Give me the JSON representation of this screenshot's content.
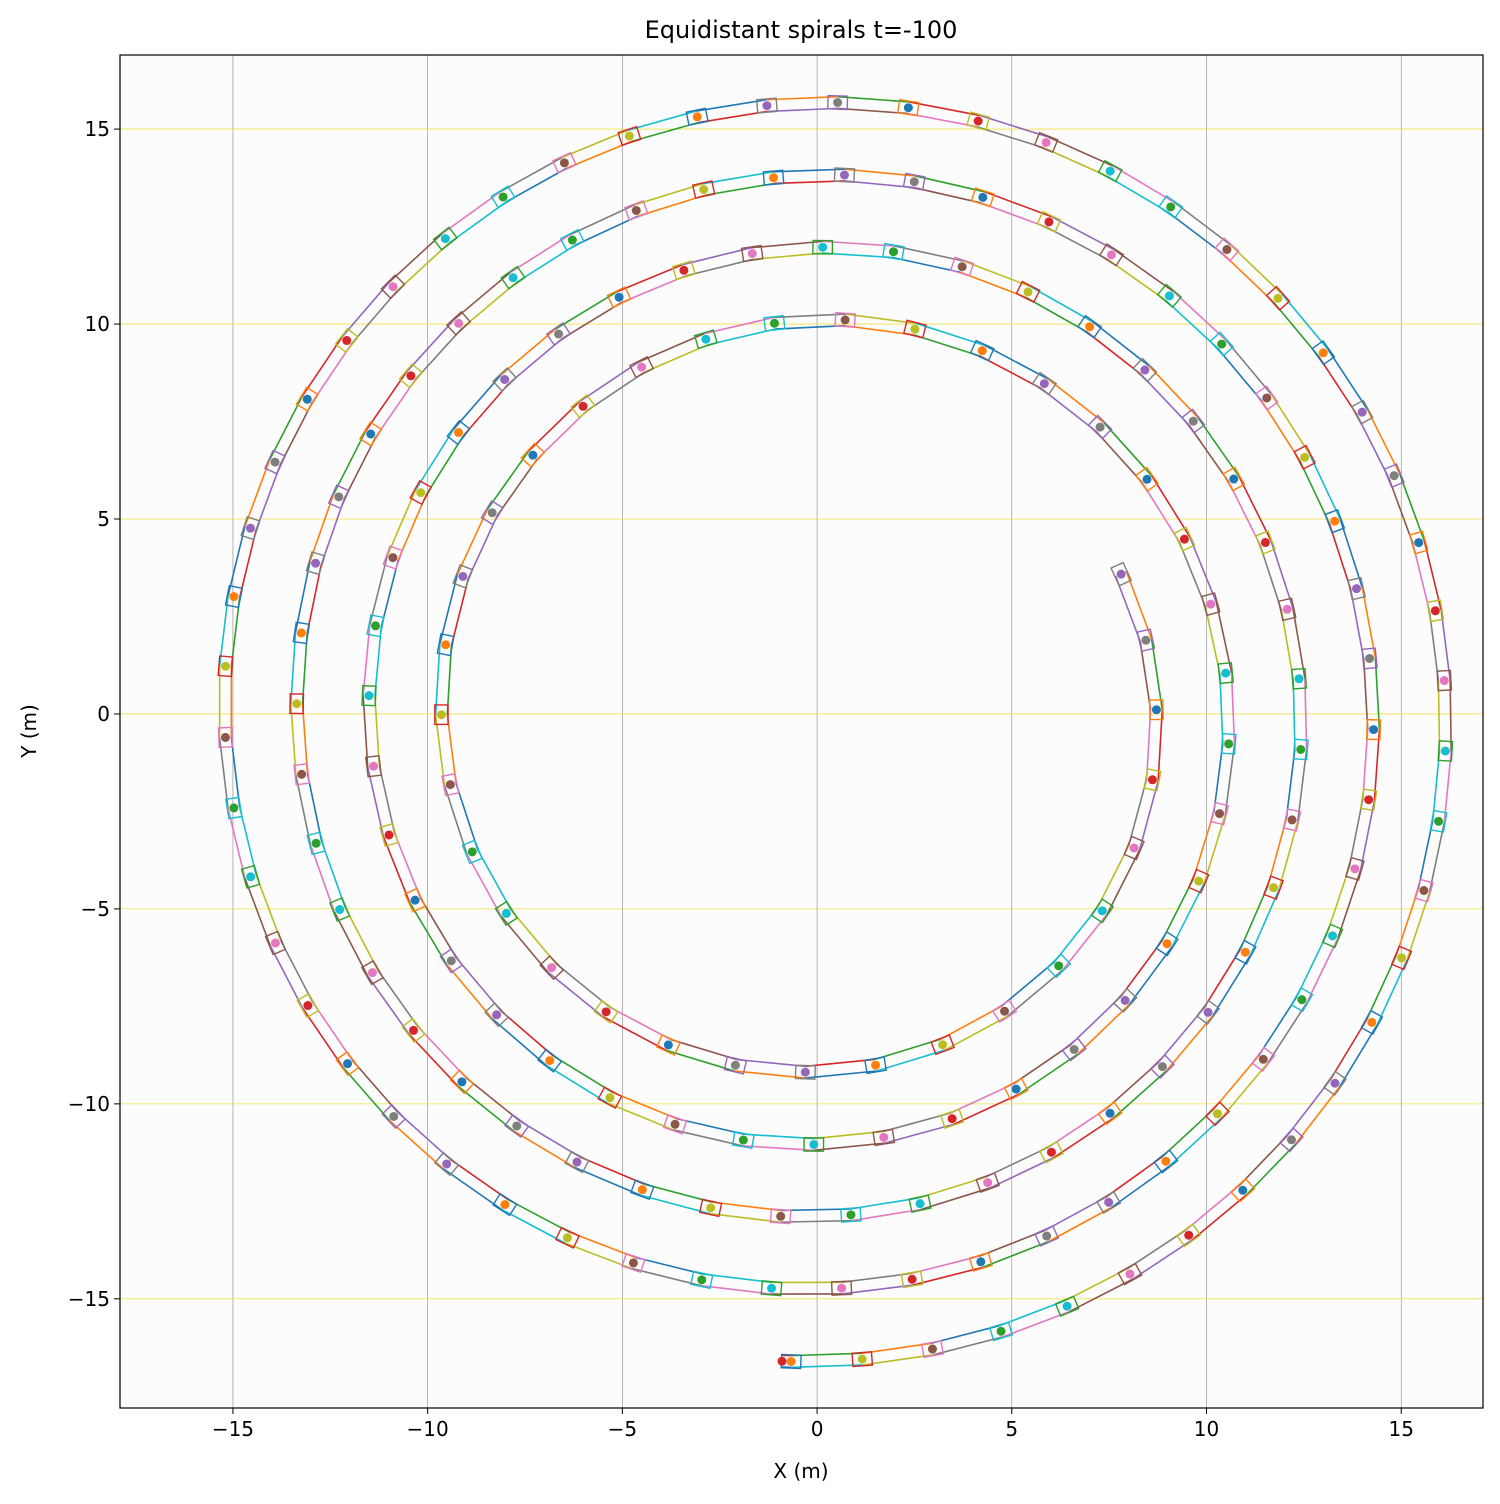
{
  "chart_data": {
    "type": "line",
    "title": "Equidistant spirals t=-100",
    "xlabel": "X (m)",
    "ylabel": "Y (m)",
    "xlim": [
      -17.9,
      17.1
    ],
    "ylim": [
      -17.8,
      16.9
    ],
    "x_ticks": [
      -15,
      -10,
      -5,
      0,
      5,
      10,
      15
    ],
    "y_ticks": [
      -15,
      -10,
      -5,
      0,
      5,
      10,
      15
    ],
    "x_tick_labels": [
      "−15",
      "−10",
      "−5",
      "0",
      "5",
      "10",
      "15"
    ],
    "y_tick_labels": [
      "−15",
      "−10",
      "−5",
      "0",
      "5",
      "10",
      "15"
    ],
    "grid": true,
    "legend": "none",
    "spiral": {
      "description": "Archimedean equidistant spiral traced clockwise outward",
      "start_point": [
        7.8,
        3.6
      ],
      "end_point": [
        -0.9,
        -16.6
      ],
      "pitch_m": 1.68,
      "half_width_m": 0.15,
      "marker_spacing_m": 1.8
    },
    "colors": {
      "background": "#fcfcfc",
      "grid_major": "#888888",
      "grid_minor": "#f0e24a",
      "cycle": [
        "#1f77b4",
        "#ff7f0e",
        "#2ca02c",
        "#d62728",
        "#9467bd",
        "#8c564b",
        "#e377c2",
        "#7f7f7f",
        "#bcbd22",
        "#17becf"
      ]
    }
  }
}
